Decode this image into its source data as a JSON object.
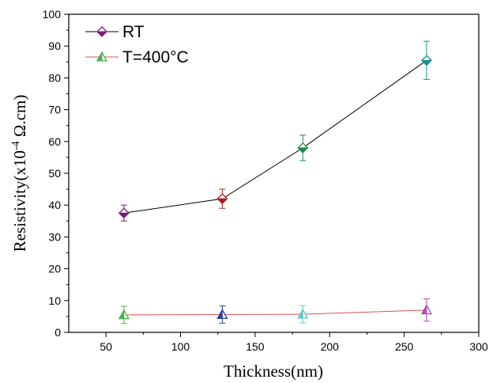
{
  "chart_data": {
    "type": "scatter",
    "xlabel": "Thickness(nm)",
    "ylabel_prefix": "Resistivity(x10",
    "ylabel_exp": "-4",
    "ylabel_suffix": " Ω.cm)",
    "xlim": [
      25,
      300
    ],
    "ylim": [
      0,
      100
    ],
    "x_ticks": [
      50,
      100,
      150,
      200,
      250,
      300
    ],
    "y_ticks": [
      0,
      10,
      20,
      30,
      40,
      50,
      60,
      70,
      80,
      90,
      100
    ],
    "grid": false,
    "legend_position": "top-left",
    "series": [
      {
        "name": "RT",
        "marker": "diamond",
        "line_color": "#000000",
        "points": [
          {
            "x": 62,
            "y": 37.5,
            "err": 2.5,
            "color": "#7b1e78"
          },
          {
            "x": 128,
            "y": 42,
            "err": 3,
            "color": "#b01c1c"
          },
          {
            "x": 182,
            "y": 58,
            "err": 4,
            "color": "#1f8a4c"
          },
          {
            "x": 265,
            "y": 85.5,
            "err": 6,
            "color": "#1a8f8f"
          }
        ],
        "legend_color": "#7b1e78"
      },
      {
        "name": "T=400°C",
        "marker": "triangle",
        "line_color": "#e05050",
        "points": [
          {
            "x": 62,
            "y": 5.5,
            "err": 2.7,
            "color": "#4caf50"
          },
          {
            "x": 128,
            "y": 5.6,
            "err": 2.7,
            "color": "#2a3f9a"
          },
          {
            "x": 182,
            "y": 5.7,
            "err": 2.7,
            "color": "#5fc9c9"
          },
          {
            "x": 265,
            "y": 7,
            "err": 3.5,
            "color": "#b04ab0"
          }
        ],
        "legend_color": "#4caf50"
      }
    ]
  }
}
